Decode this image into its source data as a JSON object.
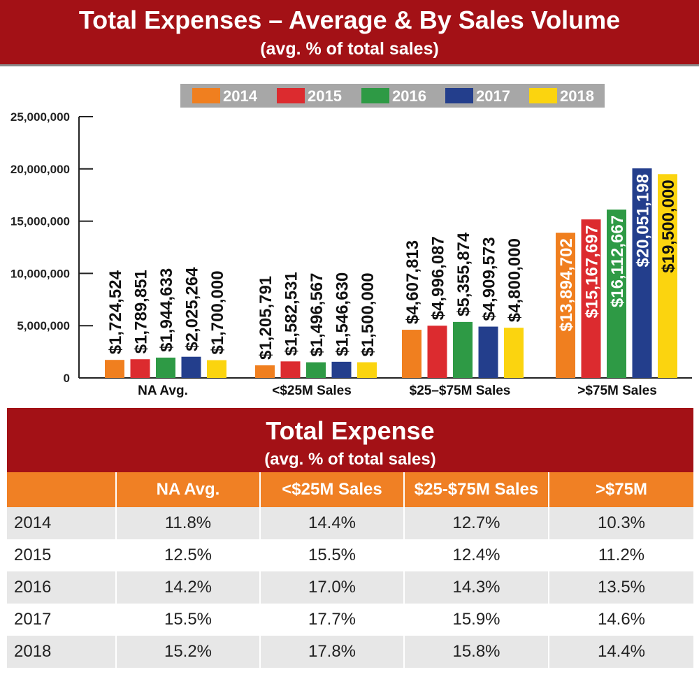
{
  "header": {
    "title": "Total Expenses – Average & By Sales Volume",
    "subtitle": "(avg. % of total sales)"
  },
  "chart_data": {
    "type": "bar",
    "title": "Total Expenses – Average & By Sales Volume",
    "subtitle": "(avg. % of total sales)",
    "categories": [
      "NA Avg.",
      "<$25M Sales",
      "$25–$75M Sales",
      ">$75M Sales"
    ],
    "series": [
      {
        "name": "2014",
        "color": "#f07f1f",
        "values": [
          1724524,
          1205791,
          4607813,
          13894702
        ],
        "labels": [
          "$1,724,524",
          "$1,205,791",
          "$4,607,813",
          "$13,894,702"
        ]
      },
      {
        "name": "2015",
        "color": "#dc2b2f",
        "values": [
          1789851,
          1582531,
          4996087,
          15167697
        ],
        "labels": [
          "$1,789,851",
          "$1,582,531",
          "$4,996,087",
          "$15,167,697"
        ]
      },
      {
        "name": "2016",
        "color": "#2e9a45",
        "values": [
          1944633,
          1496567,
          5355874,
          16112667
        ],
        "labels": [
          "$1,944,633",
          "$1,496,567",
          "$5,355,874",
          "$16,112,667"
        ]
      },
      {
        "name": "2017",
        "color": "#233e8c",
        "values": [
          2025264,
          1546630,
          4909573,
          20051198
        ],
        "labels": [
          "$2,025,264",
          "$1,546,630",
          "$4,909,573",
          "$20,051,198"
        ]
      },
      {
        "name": "2018",
        "color": "#fbd40f",
        "values": [
          1700000,
          1500000,
          4800000,
          19500000
        ],
        "labels": [
          "$1,700,000",
          "$1,500,000",
          "$4,800,000",
          "$19,500,000"
        ]
      }
    ],
    "yticks": [
      0,
      5000000,
      10000000,
      15000000,
      20000000,
      25000000
    ],
    "ytick_labels": [
      "0",
      "5,000,000",
      "10,000,000",
      "15,000,000",
      "20,000,000",
      "25,000,000"
    ],
    "ylim": [
      0,
      25000000
    ],
    "xlabel": "",
    "ylabel": "",
    "legend_position": "top",
    "grid": false
  },
  "table": {
    "title": "Total Expense",
    "subtitle": "(avg. % of total sales)",
    "headers": [
      "",
      "NA Avg.",
      "<$25M Sales",
      "$25-$75M Sales",
      ">$75M"
    ],
    "rows": [
      [
        "2014",
        "11.8%",
        "14.4%",
        "12.7%",
        "10.3%"
      ],
      [
        "2015",
        "12.5%",
        "15.5%",
        "12.4%",
        "11.2%"
      ],
      [
        "2016",
        "14.2%",
        "17.0%",
        "14.3%",
        "13.5%"
      ],
      [
        "2017",
        "15.5%",
        "17.7%",
        "15.9%",
        "14.6%"
      ],
      [
        "2018",
        "15.2%",
        "17.8%",
        "15.8%",
        "14.4%"
      ]
    ]
  },
  "colors": {
    "banner": "#a31116",
    "table_header": "#f08024",
    "legend_bg": "#a7a7a7"
  }
}
